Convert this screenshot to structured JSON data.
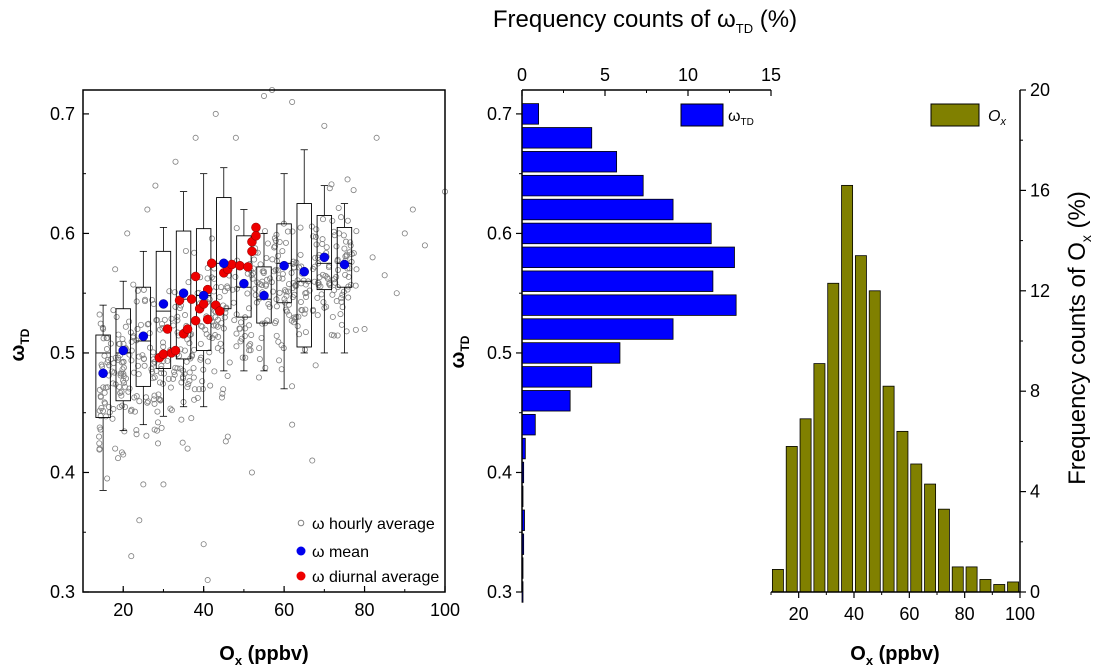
{
  "chart_data": [
    {
      "type": "scatter",
      "xlabel": "O",
      "xlabel_sub": "x",
      "xlabel_unit": "(ppbv)",
      "ylabel": "ω",
      "ylabel_sub": "TD",
      "xlim": [
        10,
        100
      ],
      "ylim": [
        0.3,
        0.72
      ],
      "x_ticks": [
        "20",
        "40",
        "60",
        "80",
        "100"
      ],
      "y_ticks": [
        "0.3",
        "0.4",
        "0.5",
        "0.6",
        "0.7"
      ],
      "legend_position": "bottom-right",
      "legend": [
        "ω hourly average",
        "ω mean",
        "ω diurnal average"
      ],
      "colors": {
        "hourly": "#808080",
        "mean": "#0000ee",
        "diurnal": "#ee0000"
      },
      "boxes": [
        {
          "x": 15,
          "q1": 0.446,
          "median": 0.5,
          "q3": 0.515,
          "wlo": 0.385,
          "whi": 0.54
        },
        {
          "x": 20,
          "q1": 0.46,
          "median": 0.5,
          "q3": 0.537,
          "wlo": 0.435,
          "whi": 0.56
        },
        {
          "x": 25,
          "q1": 0.472,
          "median": 0.51,
          "q3": 0.555,
          "wlo": 0.44,
          "whi": 0.585
        },
        {
          "x": 30,
          "q1": 0.487,
          "median": 0.535,
          "q3": 0.585,
          "wlo": 0.447,
          "whi": 0.605
        },
        {
          "x": 35,
          "q1": 0.495,
          "median": 0.545,
          "q3": 0.602,
          "wlo": 0.455,
          "whi": 0.635
        },
        {
          "x": 40,
          "q1": 0.502,
          "median": 0.548,
          "q3": 0.604,
          "wlo": 0.455,
          "whi": 0.65
        },
        {
          "x": 45,
          "q1": 0.537,
          "median": 0.575,
          "q3": 0.63,
          "wlo": 0.485,
          "whi": 0.655
        },
        {
          "x": 50,
          "q1": 0.53,
          "median": 0.555,
          "q3": 0.598,
          "wlo": 0.485,
          "whi": 0.62
        },
        {
          "x": 55,
          "q1": 0.525,
          "median": 0.545,
          "q3": 0.572,
          "wlo": 0.485,
          "whi": 0.6
        },
        {
          "x": 60,
          "q1": 0.542,
          "median": 0.575,
          "q3": 0.608,
          "wlo": 0.47,
          "whi": 0.65
        },
        {
          "x": 65,
          "q1": 0.505,
          "median": 0.56,
          "q3": 0.625,
          "wlo": 0.5,
          "whi": 0.67
        },
        {
          "x": 70,
          "q1": 0.553,
          "median": 0.575,
          "q3": 0.615,
          "wlo": 0.5,
          "whi": 0.64
        },
        {
          "x": 75,
          "q1": 0.555,
          "median": 0.575,
          "q3": 0.605,
          "wlo": 0.5,
          "whi": 0.625
        }
      ],
      "mean_points": [
        {
          "x": 15,
          "y": 0.483
        },
        {
          "x": 20,
          "y": 0.502
        },
        {
          "x": 25,
          "y": 0.514
        },
        {
          "x": 30,
          "y": 0.541
        },
        {
          "x": 35,
          "y": 0.55
        },
        {
          "x": 40,
          "y": 0.548
        },
        {
          "x": 45,
          "y": 0.575
        },
        {
          "x": 50,
          "y": 0.558
        },
        {
          "x": 55,
          "y": 0.548
        },
        {
          "x": 60,
          "y": 0.573
        },
        {
          "x": 65,
          "y": 0.568
        },
        {
          "x": 70,
          "y": 0.58
        },
        {
          "x": 75,
          "y": 0.574
        }
      ],
      "diurnal_points": [
        {
          "x": 29,
          "y": 0.496
        },
        {
          "x": 30,
          "y": 0.499
        },
        {
          "x": 31,
          "y": 0.52
        },
        {
          "x": 32,
          "y": 0.5
        },
        {
          "x": 33,
          "y": 0.502
        },
        {
          "x": 34,
          "y": 0.544
        },
        {
          "x": 35,
          "y": 0.516
        },
        {
          "x": 36,
          "y": 0.52
        },
        {
          "x": 37,
          "y": 0.545
        },
        {
          "x": 38,
          "y": 0.527
        },
        {
          "x": 38,
          "y": 0.564
        },
        {
          "x": 39,
          "y": 0.537
        },
        {
          "x": 40,
          "y": 0.541
        },
        {
          "x": 41,
          "y": 0.553
        },
        {
          "x": 41,
          "y": 0.528
        },
        {
          "x": 42,
          "y": 0.575
        },
        {
          "x": 43,
          "y": 0.54
        },
        {
          "x": 44,
          "y": 0.535
        },
        {
          "x": 45,
          "y": 0.567
        },
        {
          "x": 46,
          "y": 0.57
        },
        {
          "x": 47,
          "y": 0.574
        },
        {
          "x": 49,
          "y": 0.573
        },
        {
          "x": 51,
          "y": 0.572
        },
        {
          "x": 52,
          "y": 0.593
        },
        {
          "x": 52,
          "y": 0.585
        },
        {
          "x": 53,
          "y": 0.605
        },
        {
          "x": 53,
          "y": 0.598
        }
      ],
      "hourly_points": [
        {
          "x": 22,
          "y": 0.33
        },
        {
          "x": 40,
          "y": 0.34
        },
        {
          "x": 41,
          "y": 0.31
        },
        {
          "x": 24,
          "y": 0.36
        },
        {
          "x": 30,
          "y": 0.39
        },
        {
          "x": 25,
          "y": 0.39
        },
        {
          "x": 57,
          "y": 0.72
        },
        {
          "x": 62,
          "y": 0.71
        },
        {
          "x": 55,
          "y": 0.715
        },
        {
          "x": 95,
          "y": 0.59
        },
        {
          "x": 100,
          "y": 0.635
        },
        {
          "x": 85,
          "y": 0.565
        },
        {
          "x": 90,
          "y": 0.6
        },
        {
          "x": 78,
          "y": 0.57
        },
        {
          "x": 82,
          "y": 0.58
        },
        {
          "x": 80,
          "y": 0.52
        },
        {
          "x": 88,
          "y": 0.55
        },
        {
          "x": 92,
          "y": 0.62
        },
        {
          "x": 83,
          "y": 0.68
        },
        {
          "x": 67,
          "y": 0.41
        },
        {
          "x": 62,
          "y": 0.44
        },
        {
          "x": 52,
          "y": 0.4
        },
        {
          "x": 46,
          "y": 0.43
        },
        {
          "x": 36,
          "y": 0.42
        },
        {
          "x": 18,
          "y": 0.42
        },
        {
          "x": 16,
          "y": 0.395
        },
        {
          "x": 14,
          "y": 0.43
        },
        {
          "x": 20,
          "y": 0.415
        },
        {
          "x": 70,
          "y": 0.69
        },
        {
          "x": 48,
          "y": 0.68
        },
        {
          "x": 43,
          "y": 0.7
        },
        {
          "x": 38,
          "y": 0.68
        },
        {
          "x": 33,
          "y": 0.66
        },
        {
          "x": 28,
          "y": 0.64
        },
        {
          "x": 26,
          "y": 0.62
        },
        {
          "x": 21,
          "y": 0.6
        },
        {
          "x": 18,
          "y": 0.57
        },
        {
          "x": 15,
          "y": 0.52
        }
      ]
    },
    {
      "type": "bar",
      "orientation": "horizontal",
      "title": "Frequency counts of ω",
      "title_sub": "TD",
      "title_unit": "(%)",
      "ylabel": "ω",
      "ylabel_sub": "TD",
      "xlim": [
        0,
        15
      ],
      "ylim": [
        0.3,
        0.72
      ],
      "x_ticks": [
        "0",
        "5",
        "10",
        "15"
      ],
      "y_ticks": [
        "0.3",
        "0.4",
        "0.5",
        "0.6",
        "0.7"
      ],
      "bar_width": 0.02,
      "legend_position": "top-right",
      "series": [
        {
          "name": "ω",
          "name_sub": "TD",
          "color": "#0000ff",
          "y": [
            0.7,
            0.68,
            0.66,
            0.64,
            0.62,
            0.6,
            0.58,
            0.56,
            0.54,
            0.52,
            0.5,
            0.48,
            0.46,
            0.44,
            0.42,
            0.4,
            0.38,
            0.36,
            0.34,
            0.32,
            0.3
          ],
          "values": [
            1.0,
            4.2,
            5.7,
            7.3,
            9.1,
            11.4,
            12.8,
            11.5,
            12.9,
            9.1,
            5.9,
            4.2,
            2.9,
            0.8,
            0.2,
            0.1,
            0.05,
            0.15,
            0.1,
            0.05,
            0.05
          ]
        }
      ]
    },
    {
      "type": "bar",
      "xlabel": "O",
      "xlabel_sub": "x",
      "xlabel_unit": "(ppbv)",
      "ylabel": "Frequency counts of  O",
      "ylabel_sub": "x",
      "ylabel_unit": "(%)",
      "xlim": [
        10,
        100
      ],
      "ylim": [
        0,
        20
      ],
      "x_ticks": [
        "20",
        "40",
        "60",
        "80",
        "100"
      ],
      "y_ticks": [
        "0",
        "4",
        "8",
        "12",
        "16",
        "20"
      ],
      "legend_position": "top-right",
      "series": [
        {
          "name": "O",
          "name_sub": "x",
          "color": "#808000",
          "x": [
            12.5,
            17.5,
            22.5,
            27.5,
            32.5,
            37.5,
            42.5,
            47.5,
            52.5,
            57.5,
            62.5,
            67.5,
            72.5,
            77.5,
            82.5,
            87.5,
            92.5,
            97.5
          ],
          "values": [
            0.9,
            5.8,
            6.9,
            9.1,
            12.3,
            16.2,
            13.4,
            12.0,
            8.2,
            6.4,
            5.1,
            4.3,
            3.3,
            1.0,
            1.0,
            0.5,
            0.3,
            0.4
          ]
        }
      ]
    }
  ]
}
